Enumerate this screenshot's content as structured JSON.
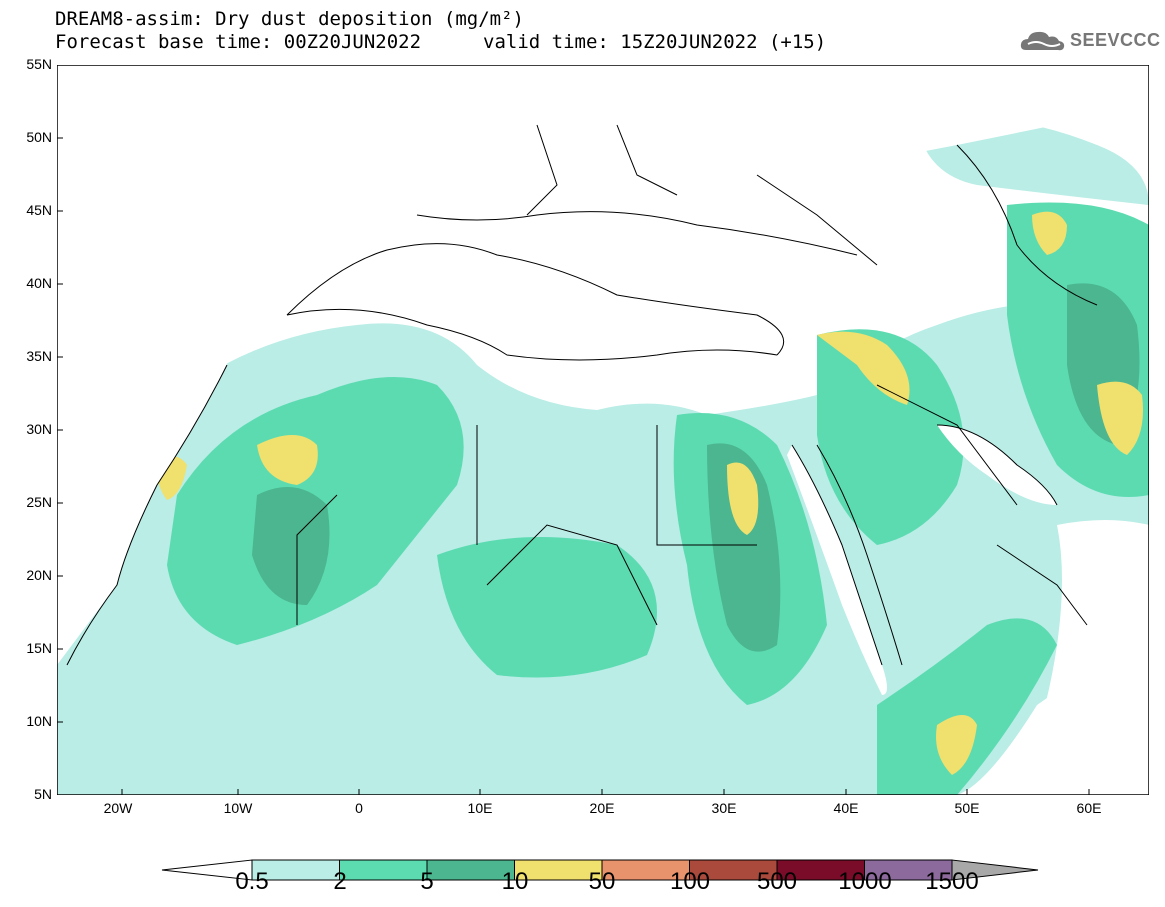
{
  "header": {
    "title_line1": "DREAM8-assim: Dry dust deposition (mg/m²)",
    "title_line2": "Forecast base time: 00Z20JUN2022",
    "valid_time": "valid time: 15Z20JUN2022 (+15)",
    "logo_text": "SEEVCCC"
  },
  "map": {
    "lat_labels": [
      "55N",
      "50N",
      "45N",
      "40N",
      "35N",
      "30N",
      "25N",
      "20N",
      "15N",
      "10N",
      "5N"
    ],
    "lon_labels": [
      "20W",
      "10W",
      "0",
      "10E",
      "20E",
      "30E",
      "40E",
      "50E",
      "60E"
    ],
    "land_color": "#ffffff",
    "border_color": "#000000"
  },
  "legend": {
    "labels": [
      "0.5",
      "2",
      "5",
      "10",
      "50",
      "100",
      "500",
      "1000",
      "1500"
    ],
    "colors": [
      "#ffffff",
      "#b9ede6",
      "#5cdbb1",
      "#4bb68f",
      "#f0e06e",
      "#e8936b",
      "#aa4a3c",
      "#7a0c2a",
      "#8c6a9b",
      "#a8a8a8"
    ]
  }
}
